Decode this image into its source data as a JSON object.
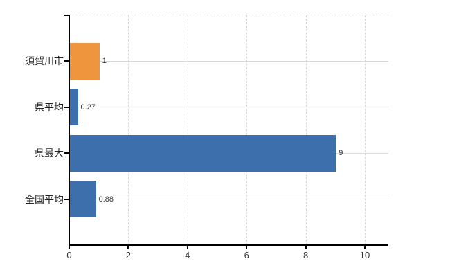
{
  "chart_data": {
    "type": "bar",
    "orientation": "horizontal",
    "categories": [
      "須賀川市",
      "県平均",
      "県最大",
      "全国平均"
    ],
    "values": [
      1,
      0.27,
      9,
      0.88
    ],
    "value_labels": [
      "1",
      "0.27",
      "9",
      "0.88"
    ],
    "bar_colors": [
      "#ef953d",
      "#3d6fad",
      "#3d6fad",
      "#3d6fad"
    ],
    "highlight_color": "#ef953d",
    "base_color": "#3d6fad",
    "x_ticks": [
      0,
      2,
      4,
      6,
      8,
      10
    ],
    "x_tick_labels": [
      "0",
      "2",
      "4",
      "6",
      "8",
      "10"
    ],
    "xlim": [
      0,
      10.8
    ],
    "grid": true,
    "grid_color": "#d8d8d8",
    "axis_color": "#000000",
    "label_color": "#333333",
    "legend": false,
    "title": "",
    "xlabel": "",
    "ylabel": ""
  }
}
